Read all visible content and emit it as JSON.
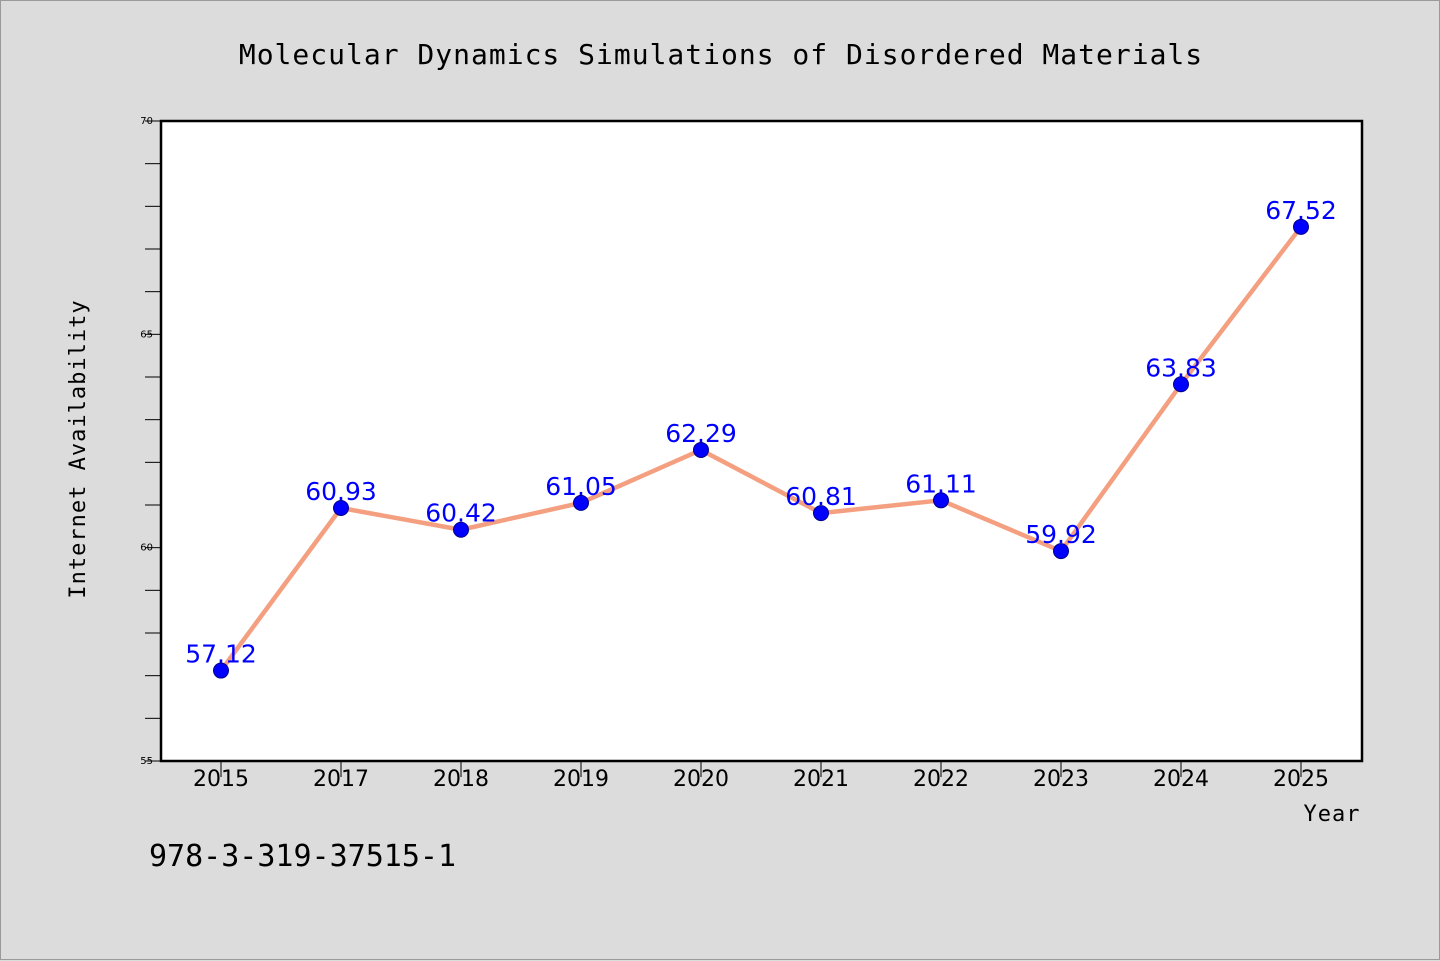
{
  "chart_data": {
    "type": "line",
    "title": "Molecular Dynamics Simulations of Disordered Materials",
    "xlabel": "Year",
    "ylabel": "Internet Availability",
    "categories": [
      "2015",
      "2017",
      "2018",
      "2019",
      "2020",
      "2021",
      "2022",
      "2023",
      "2024",
      "2025"
    ],
    "series": [
      {
        "values": [
          57.12,
          60.93,
          60.42,
          61.05,
          62.29,
          60.81,
          61.11,
          59.92,
          63.83,
          67.52
        ],
        "labels": [
          "57.12",
          "60.93",
          "60.42",
          "61.05",
          "62.29",
          "60.81",
          "61.11",
          "59.92",
          "63.83",
          "67.52"
        ]
      }
    ],
    "ylim": [
      55,
      70
    ],
    "yticks_major": [
      55,
      60,
      65,
      70
    ],
    "yticks_minor_step": 1,
    "grid": false,
    "legend": "none",
    "colors": {
      "line": "#f4a080",
      "marker": "#0000ff",
      "label": "#0000ff",
      "background": "#dcdcdc",
      "plot_background": "#ffffff"
    }
  },
  "footer": {
    "text": "978-3-319-37515-1"
  }
}
